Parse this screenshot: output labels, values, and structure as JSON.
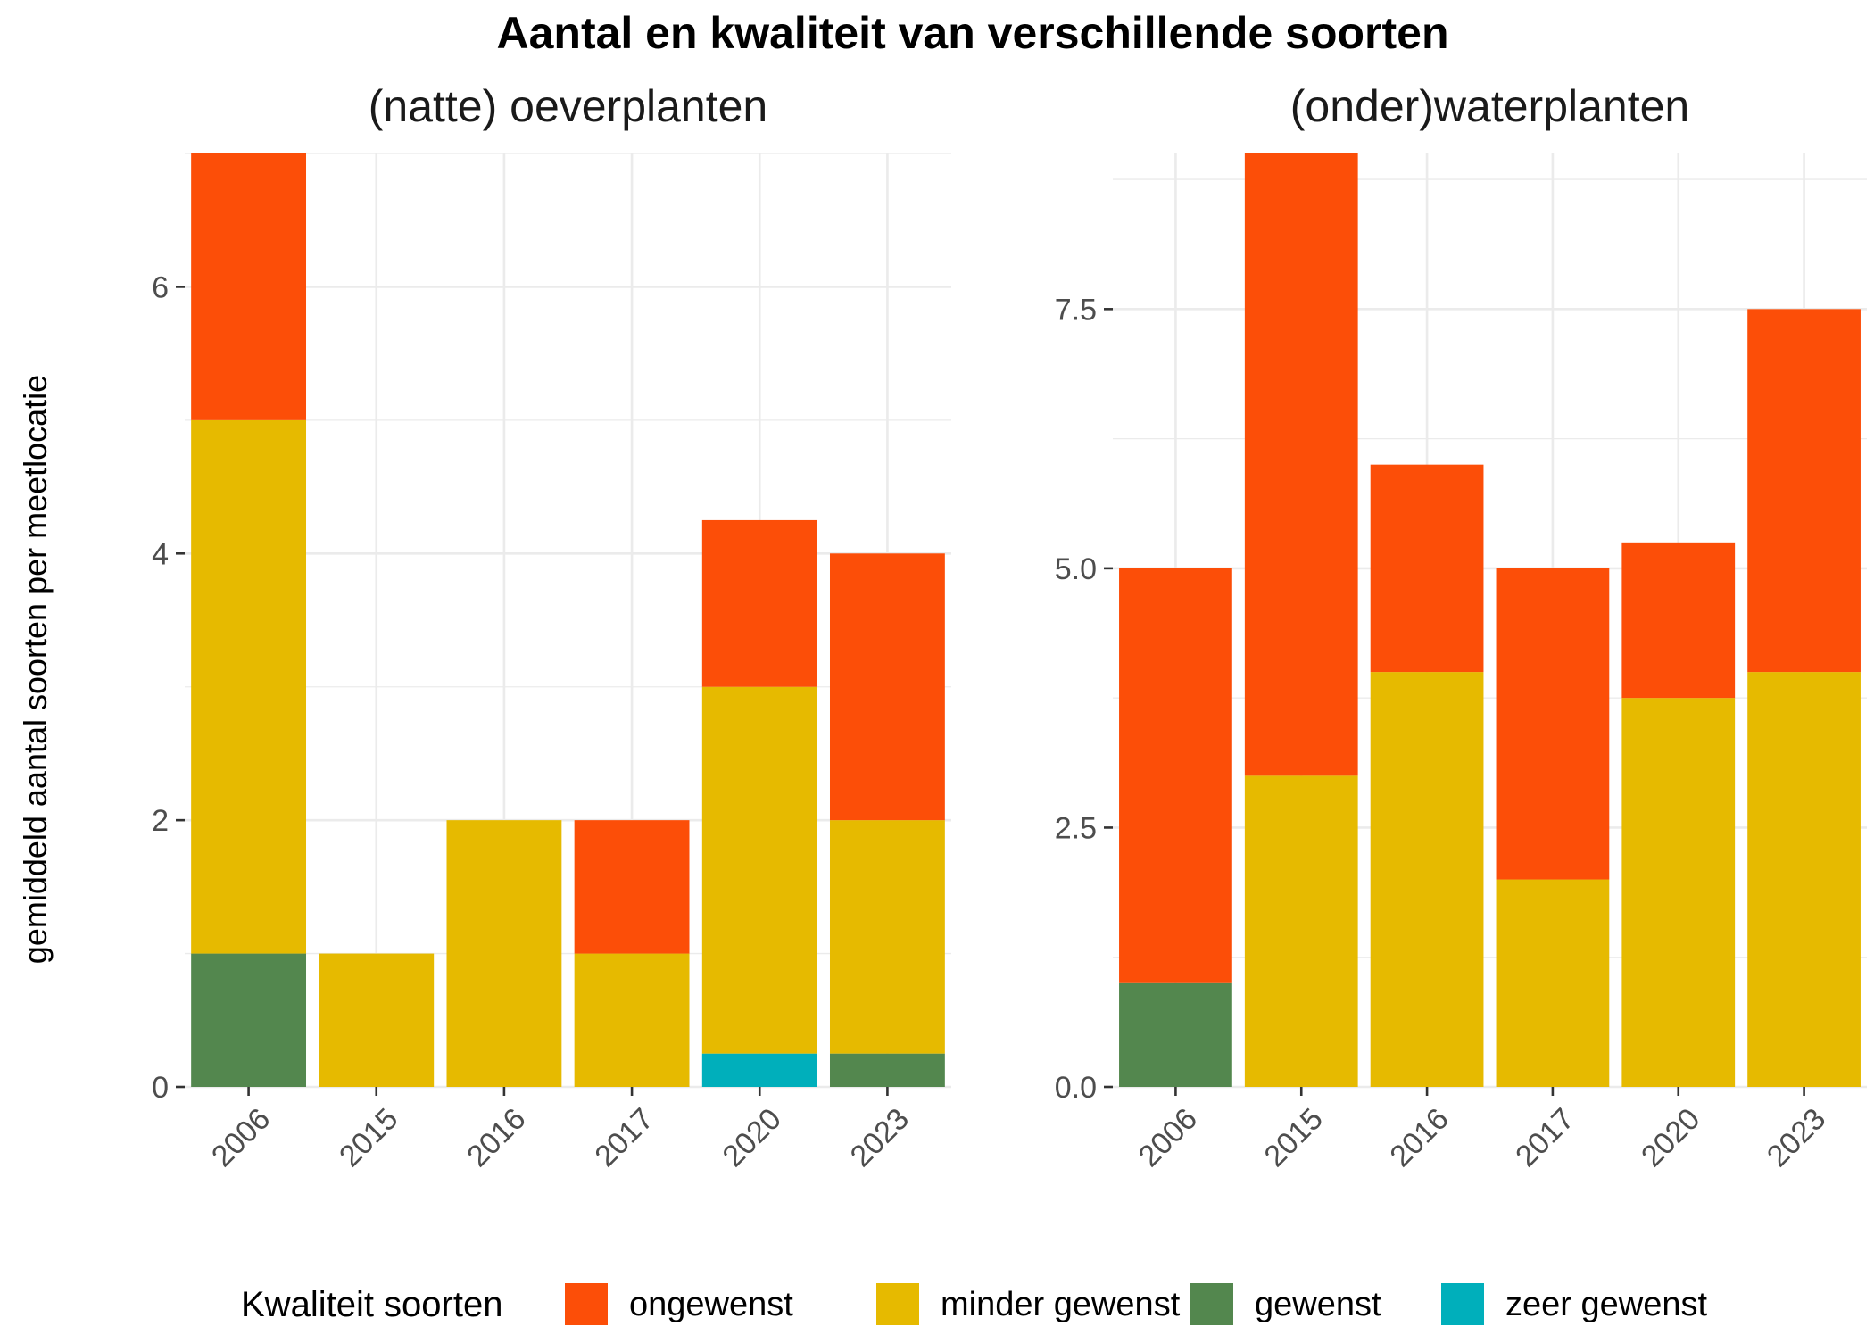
{
  "title": "Aantal en kwaliteit van verschillende soorten",
  "colors": {
    "ongewenst": "#FC4E08",
    "minder gewenst": "#E6BA00",
    "gewenst": "#53874E",
    "zeer gewenst": "#00AFBB"
  },
  "legend": {
    "title": "Kwaliteit soorten",
    "placement": "bottom",
    "entries": [
      "ongewenst",
      "minder gewenst",
      "gewenst",
      "zeer gewenst"
    ]
  },
  "chart_data": [
    {
      "type": "bar",
      "stacked": true,
      "title": "(natte) oeverplanten",
      "xlabel": "",
      "ylabel": "gemiddeld aantal soorten per meetlocatie",
      "categories": [
        "2006",
        "2015",
        "2016",
        "2017",
        "2020",
        "2023"
      ],
      "ylim": [
        0,
        7
      ],
      "yticks": [
        0,
        2,
        4,
        6
      ],
      "ytick_labels": [
        "0",
        "2",
        "4",
        "6"
      ],
      "grid": true,
      "series": [
        {
          "name": "zeer gewenst",
          "values": [
            0,
            0,
            0,
            0,
            0.25,
            0
          ]
        },
        {
          "name": "gewenst",
          "values": [
            1,
            0,
            0,
            0,
            0,
            0.25
          ]
        },
        {
          "name": "minder gewenst",
          "values": [
            4,
            1,
            2,
            1,
            2.75,
            1.75
          ]
        },
        {
          "name": "ongewenst",
          "values": [
            2,
            0,
            0,
            1,
            1.25,
            2
          ]
        }
      ]
    },
    {
      "type": "bar",
      "stacked": true,
      "title": "(onder)waterplanten",
      "xlabel": "",
      "ylabel": "",
      "categories": [
        "2006",
        "2015",
        "2016",
        "2017",
        "2020",
        "2023"
      ],
      "ylim": [
        0,
        9
      ],
      "yticks": [
        0,
        2.5,
        5,
        7.5
      ],
      "ytick_labels": [
        "0.0",
        "2.5",
        "5.0",
        "7.5"
      ],
      "grid": true,
      "series": [
        {
          "name": "zeer gewenst",
          "values": [
            0,
            0,
            0,
            0,
            0,
            0
          ]
        },
        {
          "name": "gewenst",
          "values": [
            1,
            0,
            0,
            0,
            0,
            0
          ]
        },
        {
          "name": "minder gewenst",
          "values": [
            0,
            3,
            4,
            2,
            3.75,
            4
          ]
        },
        {
          "name": "ongewenst",
          "values": [
            4,
            6,
            2,
            3,
            1.5,
            3.5
          ]
        }
      ]
    }
  ]
}
